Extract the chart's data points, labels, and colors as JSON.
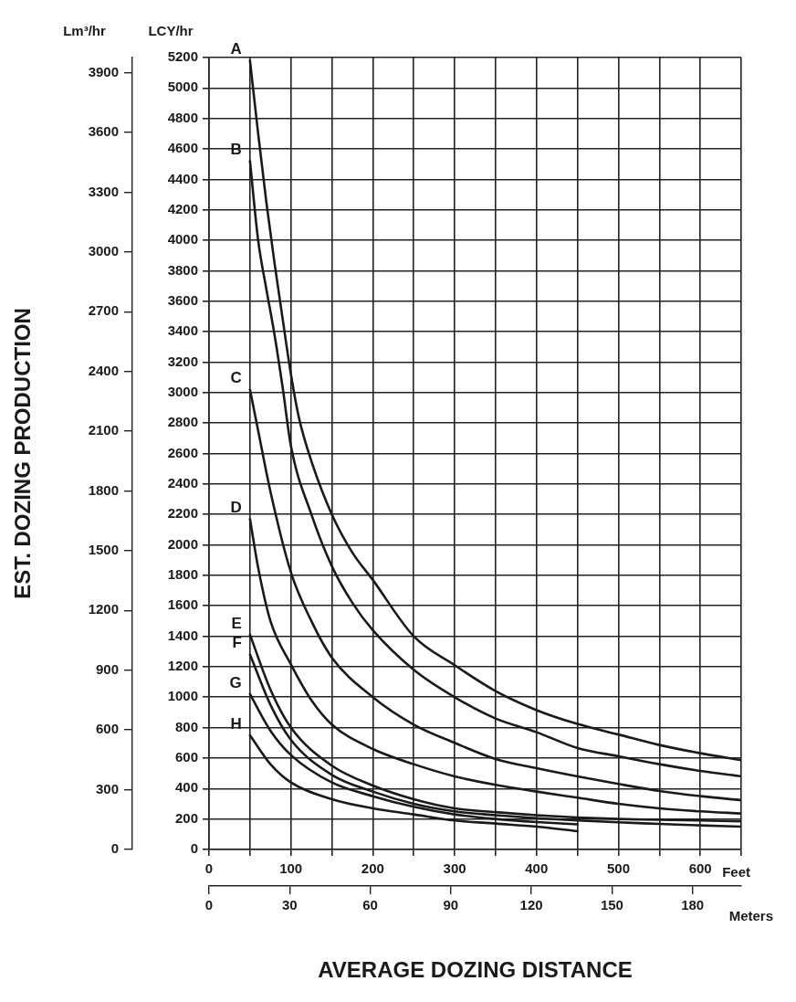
{
  "chart_data": {
    "type": "line",
    "xlabel": "AVERAGE DOZING DISTANCE",
    "ylabel": "LCY/hr",
    "y2label": "Lm³/hr",
    "x2label": "Meters",
    "annotations": [
      "EST. DOZING PRODUCTION",
      "Feet"
    ],
    "xlim": [
      0,
      650
    ],
    "xticks": [
      0,
      {
        "value": 50,
        "label": null
      },
      100,
      {
        "value": 150,
        "label": null
      },
      200,
      {
        "value": 250,
        "label": null
      },
      300,
      {
        "value": 350,
        "label": null
      },
      400,
      {
        "value": 450,
        "label": null
      },
      500,
      {
        "value": 550,
        "label": null
      },
      600,
      {
        "value": 650,
        "label": null
      }
    ],
    "ylim": [
      0,
      5200
    ],
    "yticks": [
      0,
      200,
      400,
      600,
      800,
      1000,
      1200,
      1400,
      1600,
      1800,
      2000,
      2200,
      2400,
      2600,
      2800,
      3000,
      3200,
      3400,
      3600,
      3800,
      4000,
      4200,
      4400,
      4600,
      4800,
      5000,
      5200
    ],
    "y2lim": [
      0,
      3976
    ],
    "y2ticks": [
      0,
      300,
      600,
      900,
      1200,
      1500,
      1800,
      2100,
      2400,
      2700,
      3000,
      3300,
      3600,
      3900
    ],
    "x2lim": [
      0,
      198.12
    ],
    "x2ticks": [
      0,
      30,
      60,
      90,
      120,
      150,
      180
    ],
    "grid": true,
    "legend": false,
    "marker": "none",
    "line_style": "solid",
    "series": [
      {
        "name": "A",
        "color": "#1a1a1a",
        "x": [
          50,
          60,
          70,
          80,
          90,
          100,
          110,
          125,
          150,
          175,
          200,
          250,
          300,
          350,
          400,
          450,
          500,
          550,
          600,
          650
        ],
        "values": [
          5180,
          4700,
          4250,
          3850,
          3480,
          3120,
          2830,
          2550,
          2200,
          1950,
          1770,
          1400,
          1210,
          1040,
          915,
          824,
          755,
          686,
          632,
          586
        ]
      },
      {
        "name": "B",
        "color": "#1a1a1a",
        "x": [
          50,
          60,
          70,
          80,
          90,
          100,
          125,
          150,
          175,
          200,
          250,
          300,
          350,
          400,
          450,
          500,
          550,
          600,
          650
        ],
        "values": [
          4520,
          4000,
          3680,
          3380,
          3030,
          2650,
          2200,
          1860,
          1620,
          1440,
          1180,
          1000,
          860,
          770,
          666,
          612,
          560,
          516,
          480
        ]
      },
      {
        "name": "C",
        "color": "#1a1a1a",
        "x": [
          50,
          60,
          75,
          100,
          125,
          150,
          200,
          250,
          300,
          350,
          400,
          450,
          500,
          550,
          600,
          650
        ],
        "values": [
          3020,
          2750,
          2350,
          1820,
          1500,
          1260,
          1000,
          820,
          700,
          594,
          534,
          480,
          430,
          384,
          350,
          324
        ]
      },
      {
        "name": "D",
        "color": "#1a1a1a",
        "x": [
          50,
          60,
          75,
          100,
          125,
          150,
          200,
          250,
          300,
          350,
          400,
          450,
          500,
          550,
          600,
          650
        ],
        "values": [
          2170,
          1850,
          1500,
          1215,
          980,
          820,
          660,
          560,
          480,
          424,
          380,
          340,
          300,
          270,
          250,
          236
        ]
      },
      {
        "name": "E",
        "color": "#1a1a1a",
        "x": [
          50,
          75,
          100,
          150,
          200,
          250,
          300,
          350,
          400,
          450,
          500,
          550,
          600,
          650
        ],
        "values": [
          1410,
          1050,
          800,
          550,
          420,
          330,
          270,
          245,
          225,
          210,
          200,
          195,
          190,
          185
        ]
      },
      {
        "name": "F",
        "color": "#1a1a1a",
        "x": [
          50,
          75,
          100,
          150,
          200,
          250,
          300,
          350,
          400,
          450,
          500,
          550,
          600,
          650
        ],
        "values": [
          1280,
          950,
          720,
          490,
          380,
          300,
          250,
          225,
          205,
          190,
          178,
          168,
          158,
          150
        ]
      },
      {
        "name": "G",
        "color": "#1a1a1a",
        "x": [
          50,
          75,
          100,
          150,
          200,
          250,
          300,
          350,
          400,
          450
        ],
        "values": [
          1020,
          780,
          620,
          440,
          350,
          280,
          230,
          200,
          180,
          165
        ]
      },
      {
        "name": "H",
        "color": "#1a1a1a",
        "x": [
          50,
          75,
          100,
          150,
          200,
          250,
          300,
          350,
          400,
          450
        ],
        "values": [
          750,
          560,
          440,
          330,
          270,
          230,
          190,
          170,
          150,
          120
        ]
      }
    ]
  }
}
